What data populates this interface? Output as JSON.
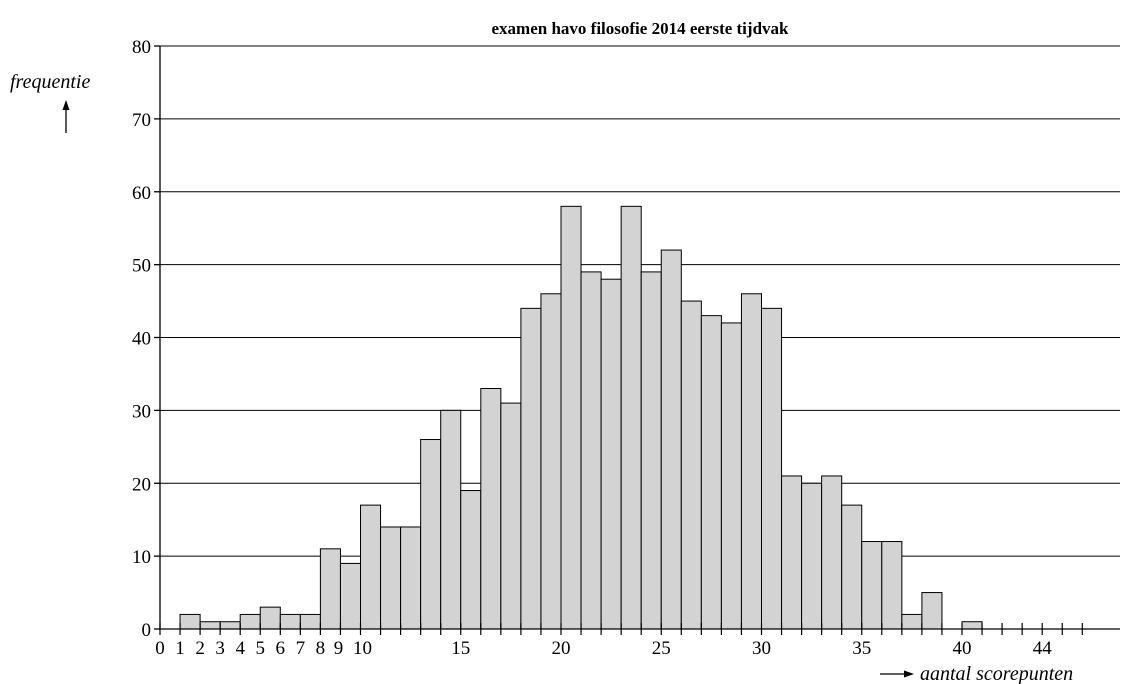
{
  "chart_data": {
    "type": "bar",
    "title": "examen havo filosofie 2014 eerste tijdvak",
    "xlabel": "aantal scorepunten",
    "ylabel": "frequentie",
    "ylim": [
      0,
      80
    ],
    "xlim": [
      0,
      46
    ],
    "yticks": [
      0,
      10,
      20,
      30,
      40,
      50,
      60,
      70,
      80
    ],
    "xtick_labels": [
      "0",
      "1",
      "2",
      "3",
      "4",
      "5",
      "6",
      "7",
      "8",
      "9",
      "10",
      "15",
      "20",
      "25",
      "30",
      "35",
      "40",
      "44"
    ],
    "grid": true,
    "x": [
      0,
      1,
      2,
      3,
      4,
      5,
      6,
      7,
      8,
      9,
      10,
      11,
      12,
      13,
      14,
      15,
      16,
      17,
      18,
      19,
      20,
      21,
      22,
      23,
      24,
      25,
      26,
      27,
      28,
      29,
      30,
      31,
      32,
      33,
      34,
      35,
      36,
      37,
      38,
      39,
      40,
      41,
      42,
      43,
      44,
      45
    ],
    "values": [
      0,
      2,
      1,
      1,
      2,
      3,
      2,
      2,
      11,
      9,
      17,
      14,
      14,
      26,
      30,
      19,
      33,
      31,
      44,
      46,
      58,
      49,
      48,
      58,
      49,
      52,
      45,
      43,
      42,
      46,
      44,
      21,
      20,
      21,
      17,
      12,
      12,
      2,
      5,
      0,
      1,
      0,
      0,
      0,
      0,
      0
    ]
  },
  "colors": {
    "bar_fill": "#d3d3d3",
    "bar_stroke": "#000000",
    "grid": "#000000"
  }
}
